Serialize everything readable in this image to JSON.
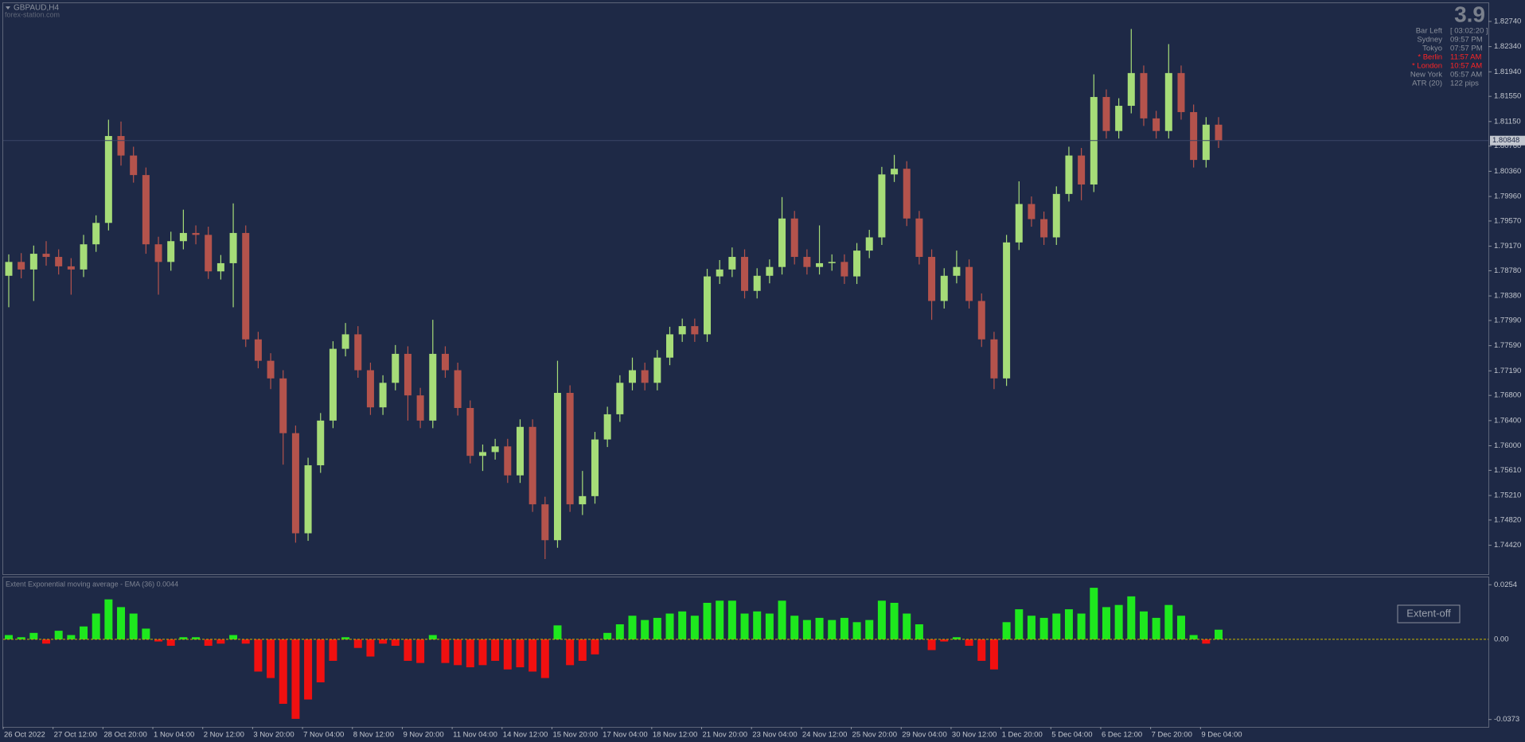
{
  "chart_data": [
    {
      "type": "candlestick",
      "symbol": "GBPAUD,H4",
      "watermark": "forex-station.com",
      "up_color": "#a6dc78",
      "down_color": "#b4534c",
      "grid": false,
      "current_price": 1.80848,
      "ylim": [
        1.7396,
        1.8303
      ],
      "yticks": [
        {
          "value": 1.8274,
          "label": "1.82740"
        },
        {
          "value": 1.8234,
          "label": "1.82340"
        },
        {
          "value": 1.8194,
          "label": "1.81940"
        },
        {
          "value": 1.8155,
          "label": "1.81550"
        },
        {
          "value": 1.8115,
          "label": "1.81150"
        },
        {
          "value": 1.8076,
          "label": "1.80760"
        },
        {
          "value": 1.8036,
          "label": "1.80360"
        },
        {
          "value": 1.7996,
          "label": "1.79960"
        },
        {
          "value": 1.7957,
          "label": "1.79570"
        },
        {
          "value": 1.7917,
          "label": "1.79170"
        },
        {
          "value": 1.7878,
          "label": "1.78780"
        },
        {
          "value": 1.7838,
          "label": "1.78380"
        },
        {
          "value": 1.7799,
          "label": "1.77990"
        },
        {
          "value": 1.7759,
          "label": "1.77590"
        },
        {
          "value": 1.7719,
          "label": "1.77190"
        },
        {
          "value": 1.768,
          "label": "1.76800"
        },
        {
          "value": 1.764,
          "label": "1.76400"
        },
        {
          "value": 1.76,
          "label": "1.76000"
        },
        {
          "value": 1.7561,
          "label": "1.75610"
        },
        {
          "value": 1.7521,
          "label": "1.75210"
        },
        {
          "value": 1.7482,
          "label": "1.74820"
        },
        {
          "value": 1.7442,
          "label": "1.74420"
        }
      ],
      "categories": [
        "26 Oct 2022",
        null,
        null,
        null,
        "27 Oct 12:00",
        null,
        null,
        null,
        "28 Oct 20:00",
        null,
        null,
        null,
        "1 Nov 04:00",
        null,
        null,
        null,
        "2 Nov 12:00",
        null,
        null,
        null,
        "3 Nov 20:00",
        null,
        null,
        null,
        "7 Nov 04:00",
        null,
        null,
        null,
        "8 Nov 12:00",
        null,
        null,
        null,
        "9 Nov 20:00",
        null,
        null,
        null,
        "11 Nov 04:00",
        null,
        null,
        null,
        "14 Nov 12:00",
        null,
        null,
        null,
        "15 Nov 20:00",
        null,
        null,
        null,
        "17 Nov 04:00",
        null,
        null,
        null,
        "18 Nov 12:00",
        null,
        null,
        null,
        "21 Nov 20:00",
        null,
        null,
        null,
        "23 Nov 04:00",
        null,
        null,
        null,
        "24 Nov 12:00",
        null,
        null,
        null,
        "25 Nov 20:00",
        null,
        null,
        null,
        "29 Nov 04:00",
        null,
        null,
        null,
        "30 Nov 12:00",
        null,
        null,
        null,
        "1 Dec 20:00",
        null,
        null,
        null,
        "5 Dec 04:00",
        null,
        null,
        null,
        "6 Dec 12:00",
        null,
        null,
        null,
        "7 Dec 20:00",
        null,
        null,
        null,
        "9 Dec 04:00",
        null
      ],
      "open": [
        1.787,
        1.7892,
        1.788,
        1.7905,
        1.79,
        1.7885,
        1.788,
        1.792,
        1.7954,
        1.8092,
        1.8061,
        1.803,
        1.792,
        1.7892,
        1.7925,
        1.7938,
        1.7935,
        1.7877,
        1.789,
        1.7938,
        1.7769,
        1.7735,
        1.7707,
        1.762,
        1.7461,
        1.7569,
        1.764,
        1.7754,
        1.7777,
        1.772,
        1.7661,
        1.77,
        1.7746,
        1.768,
        1.764,
        1.7746,
        1.772,
        1.766,
        1.7584,
        1.759,
        1.7599,
        1.7553,
        1.763,
        1.7507,
        1.745,
        1.7684,
        1.7507,
        1.752,
        1.761,
        1.765,
        1.77,
        1.772,
        1.77,
        1.774,
        1.7777,
        1.779,
        1.7777,
        1.7869,
        1.788,
        1.79,
        1.7846,
        1.787,
        1.7884,
        1.7961,
        1.79,
        1.7884,
        1.789,
        1.7892,
        1.7869,
        1.791,
        1.7931,
        1.8031,
        1.804,
        1.7961,
        1.79,
        1.783,
        1.787,
        1.7884,
        1.783,
        1.7769,
        1.7707,
        1.7923,
        1.7984,
        1.796,
        1.7931,
        1.8,
        1.8061,
        1.8015,
        1.8154,
        1.81,
        1.814,
        1.8192,
        1.812,
        1.81,
        1.8192,
        1.813,
        1.8054,
        1.811
      ],
      "high": [
        1.7904,
        1.7906,
        1.7918,
        1.7925,
        1.7912,
        1.7898,
        1.7935,
        1.7966,
        1.8118,
        1.8115,
        1.8075,
        1.8042,
        1.7932,
        1.794,
        1.7975,
        1.795,
        1.7948,
        1.7903,
        1.7985,
        1.795,
        1.7781,
        1.7747,
        1.772,
        1.7632,
        1.7581,
        1.7652,
        1.7766,
        1.7795,
        1.779,
        1.7732,
        1.7712,
        1.776,
        1.7758,
        1.7692,
        1.78,
        1.7758,
        1.7732,
        1.7672,
        1.7602,
        1.7611,
        1.7611,
        1.7642,
        1.7642,
        1.7519,
        1.7735,
        1.7696,
        1.756,
        1.7622,
        1.7662,
        1.7712,
        1.774,
        1.7732,
        1.7752,
        1.7789,
        1.7802,
        1.7802,
        1.7881,
        1.7895,
        1.7915,
        1.7912,
        1.7882,
        1.7896,
        1.7995,
        1.7973,
        1.7912,
        1.795,
        1.7904,
        1.7904,
        1.7922,
        1.7943,
        1.8043,
        1.8062,
        1.8052,
        1.7973,
        1.7912,
        1.7882,
        1.791,
        1.7896,
        1.7842,
        1.7781,
        1.7935,
        1.802,
        1.7996,
        1.7972,
        1.8012,
        1.8075,
        1.8073,
        1.819,
        1.8166,
        1.8152,
        1.8262,
        1.8204,
        1.8132,
        1.8238,
        1.8204,
        1.8142,
        1.8122,
        1.8122
      ],
      "low": [
        1.782,
        1.7866,
        1.783,
        1.7886,
        1.7872,
        1.784,
        1.7868,
        1.7908,
        1.7942,
        1.8045,
        1.8018,
        1.7905,
        1.784,
        1.7878,
        1.7912,
        1.792,
        1.7865,
        1.7864,
        1.782,
        1.7757,
        1.7723,
        1.769,
        1.757,
        1.7446,
        1.7449,
        1.7557,
        1.7628,
        1.7742,
        1.7708,
        1.7649,
        1.7649,
        1.7688,
        1.764,
        1.7628,
        1.7628,
        1.7708,
        1.7648,
        1.7572,
        1.756,
        1.7578,
        1.7541,
        1.7541,
        1.7495,
        1.742,
        1.7438,
        1.7495,
        1.749,
        1.7508,
        1.7598,
        1.7638,
        1.7688,
        1.7688,
        1.7688,
        1.7728,
        1.7765,
        1.7765,
        1.7765,
        1.7857,
        1.7868,
        1.7834,
        1.7834,
        1.7858,
        1.7872,
        1.7888,
        1.7872,
        1.7872,
        1.7878,
        1.7857,
        1.7857,
        1.7898,
        1.7919,
        1.8019,
        1.7949,
        1.7888,
        1.78,
        1.7818,
        1.7858,
        1.7818,
        1.7757,
        1.769,
        1.7695,
        1.7911,
        1.7948,
        1.7919,
        1.7919,
        1.7988,
        1.799,
        1.8003,
        1.8088,
        1.8088,
        1.8128,
        1.8108,
        1.8088,
        1.8088,
        1.8118,
        1.8042,
        1.8042,
        1.8073
      ],
      "close": [
        1.7892,
        1.788,
        1.7905,
        1.79,
        1.7885,
        1.788,
        1.792,
        1.7954,
        1.8092,
        1.8061,
        1.803,
        1.792,
        1.7892,
        1.7925,
        1.7938,
        1.7935,
        1.7877,
        1.789,
        1.7938,
        1.7769,
        1.7735,
        1.7707,
        1.762,
        1.7461,
        1.7569,
        1.764,
        1.7754,
        1.7777,
        1.772,
        1.7661,
        1.77,
        1.7746,
        1.768,
        1.764,
        1.7746,
        1.772,
        1.766,
        1.7584,
        1.759,
        1.7599,
        1.7553,
        1.763,
        1.7507,
        1.745,
        1.7684,
        1.7507,
        1.752,
        1.761,
        1.765,
        1.77,
        1.772,
        1.77,
        1.774,
        1.7777,
        1.779,
        1.7777,
        1.7869,
        1.788,
        1.79,
        1.7846,
        1.787,
        1.7884,
        1.7961,
        1.79,
        1.7884,
        1.789,
        1.7892,
        1.7869,
        1.791,
        1.7931,
        1.8031,
        1.804,
        1.7961,
        1.79,
        1.783,
        1.787,
        1.7884,
        1.783,
        1.7769,
        1.7707,
        1.7923,
        1.7984,
        1.796,
        1.7931,
        1.8,
        1.8061,
        1.8015,
        1.8154,
        1.81,
        1.814,
        1.8192,
        1.812,
        1.81,
        1.8192,
        1.813,
        1.8054,
        1.811,
        1.8085
      ]
    },
    {
      "type": "bar",
      "title": "Extent Exponential moving average - EMA (36) 0.0044",
      "up_color": "#1ee81e",
      "down_color": "#f01010",
      "zero_line_color": "#c8b400",
      "grid": false,
      "button": "Extent-off",
      "ylim": [
        -0.04,
        0.0281
      ],
      "yticks": [
        0.0254,
        {
          "value": 0,
          "label": "0.00"
        },
        -0.0373
      ],
      "values": [
        0.002,
        0.001,
        0.003,
        -0.002,
        0.004,
        0.002,
        0.006,
        0.012,
        0.0186,
        0.015,
        0.012,
        0.005,
        -0.001,
        -0.003,
        0.001,
        0.001,
        -0.003,
        -0.002,
        0.002,
        -0.002,
        -0.015,
        -0.018,
        -0.03,
        -0.037,
        -0.028,
        -0.02,
        -0.01,
        0.001,
        -0.004,
        -0.008,
        -0.002,
        -0.003,
        -0.01,
        -0.011,
        0.002,
        -0.011,
        -0.012,
        -0.013,
        -0.012,
        -0.01,
        -0.014,
        -0.013,
        -0.015,
        -0.018,
        0.0065,
        -0.012,
        -0.01,
        -0.007,
        0.003,
        0.007,
        0.011,
        0.009,
        0.01,
        0.012,
        0.013,
        0.011,
        0.017,
        0.018,
        0.018,
        0.012,
        0.013,
        0.012,
        0.018,
        0.011,
        0.009,
        0.01,
        0.009,
        0.01,
        0.008,
        0.009,
        0.018,
        0.017,
        0.012,
        0.007,
        -0.005,
        -0.001,
        0.001,
        -0.003,
        -0.01,
        -0.014,
        0.008,
        0.014,
        0.011,
        0.01,
        0.012,
        0.014,
        0.012,
        0.024,
        0.015,
        0.016,
        0.02,
        0.013,
        0.01,
        0.016,
        0.011,
        0.002,
        -0.002,
        0.0045
      ]
    }
  ],
  "info_panel": {
    "spread": 3.9,
    "rows": [
      {
        "label": "Bar Left",
        "value": "[ 03:02:20 ]",
        "color": "#8a909c"
      },
      {
        "label": "Sydney",
        "value": "09:57 PM",
        "color": "#8a909c"
      },
      {
        "label": "Tokyo",
        "value": "07:57 PM",
        "color": "#8a909c"
      },
      {
        "label": "* Berlin",
        "value": "11:57 AM",
        "color": "#ff2424"
      },
      {
        "label": "* London",
        "value": "10:57 AM",
        "color": "#ff2424"
      },
      {
        "label": "New York",
        "value": "05:57 AM",
        "color": "#8a909c"
      },
      {
        "label": "ATR (20)",
        "value": "122 pips",
        "color": "#8a909c"
      }
    ]
  }
}
